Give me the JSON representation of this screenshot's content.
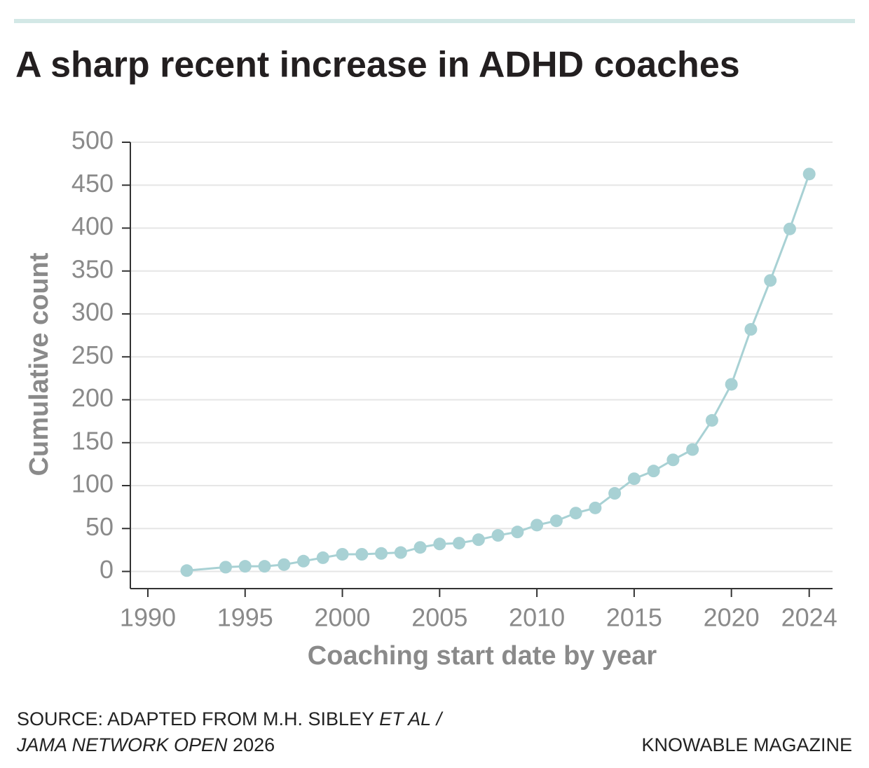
{
  "chart_data": {
    "type": "line",
    "title": "A sharp recent increase in ADHD coaches",
    "x_label": "Coaching start date by year",
    "y_label": "Cumulative count",
    "x": [
      1992,
      1994,
      1995,
      1996,
      1997,
      1998,
      1999,
      2000,
      2001,
      2002,
      2003,
      2004,
      2005,
      2006,
      2007,
      2008,
      2009,
      2010,
      2011,
      2012,
      2013,
      2014,
      2015,
      2016,
      2017,
      2018,
      2019,
      2020,
      2021,
      2022,
      2023,
      2024
    ],
    "values": [
      1,
      5,
      6,
      6,
      8,
      12,
      16,
      20,
      20,
      21,
      22,
      28,
      32,
      33,
      37,
      42,
      46,
      54,
      59,
      68,
      74,
      91,
      108,
      117,
      130,
      142,
      176,
      218,
      282,
      339,
      399,
      463
    ],
    "color": "#a8d1d4",
    "xlim": [
      1989.1,
      2025.2
    ],
    "xticks": [
      1990,
      1995,
      2000,
      2005,
      2010,
      2015,
      2020,
      2024
    ],
    "ylim": [
      -20,
      500
    ],
    "yticks": [
      0,
      50,
      100,
      150,
      200,
      250,
      300,
      350,
      400,
      450,
      500
    ],
    "grid": true,
    "source": [
      "SOURCE: ADAPTED FROM M.H. SIBLEY",
      "ET AL",
      "/",
      "JAMA NETWORK OPEN",
      "2026"
    ],
    "credit": "KNOWABLE MAGAZINE"
  }
}
